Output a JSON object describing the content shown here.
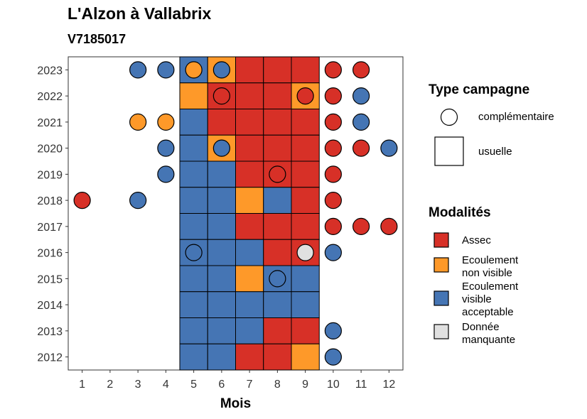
{
  "header": {
    "title": "L'Alzon à Vallabrix",
    "subtitle": "V7185017"
  },
  "colors": {
    "Assec": "#D73027",
    "Ecoulement non visible": "#FE9929",
    "Ecoulement visible acceptable": "#4575B4",
    "Donnée manquante": "#E0E0E0"
  },
  "legend_type": {
    "title": "Type campagne",
    "items": [
      {
        "label": "complémentaire",
        "shape": "circle"
      },
      {
        "label": "usuelle",
        "shape": "square"
      }
    ]
  },
  "legend_mod": {
    "title": "Modalités",
    "items": [
      {
        "key": "Assec",
        "lines": [
          "Assec"
        ]
      },
      {
        "key": "Ecoulement non visible",
        "lines": [
          "Ecoulement",
          "non visible"
        ]
      },
      {
        "key": "Ecoulement visible acceptable",
        "lines": [
          "Ecoulement",
          "visible",
          "acceptable"
        ]
      },
      {
        "key": "Donnée manquante",
        "lines": [
          "Donnée",
          "manquante"
        ]
      }
    ]
  },
  "chart_data": {
    "type": "heatmap",
    "xlabel": "Mois",
    "ylabel": "",
    "x_ticks": [
      1,
      2,
      3,
      4,
      5,
      6,
      7,
      8,
      9,
      10,
      11,
      12
    ],
    "y_ticks": [
      2012,
      2013,
      2014,
      2015,
      2016,
      2017,
      2018,
      2019,
      2020,
      2021,
      2022,
      2023
    ],
    "usuelle_tiles": [
      {
        "year": 2023,
        "month": 5,
        "value": "Ecoulement visible acceptable"
      },
      {
        "year": 2023,
        "month": 6,
        "value": "Ecoulement non visible"
      },
      {
        "year": 2023,
        "month": 7,
        "value": "Assec"
      },
      {
        "year": 2023,
        "month": 8,
        "value": "Assec"
      },
      {
        "year": 2023,
        "month": 9,
        "value": "Assec"
      },
      {
        "year": 2022,
        "month": 5,
        "value": "Ecoulement non visible"
      },
      {
        "year": 2022,
        "month": 6,
        "value": "Assec"
      },
      {
        "year": 2022,
        "month": 7,
        "value": "Assec"
      },
      {
        "year": 2022,
        "month": 8,
        "value": "Assec"
      },
      {
        "year": 2022,
        "month": 9,
        "value": "Ecoulement non visible"
      },
      {
        "year": 2021,
        "month": 5,
        "value": "Ecoulement visible acceptable"
      },
      {
        "year": 2021,
        "month": 6,
        "value": "Assec"
      },
      {
        "year": 2021,
        "month": 7,
        "value": "Assec"
      },
      {
        "year": 2021,
        "month": 8,
        "value": "Assec"
      },
      {
        "year": 2021,
        "month": 9,
        "value": "Assec"
      },
      {
        "year": 2020,
        "month": 5,
        "value": "Ecoulement visible acceptable"
      },
      {
        "year": 2020,
        "month": 6,
        "value": "Ecoulement non visible"
      },
      {
        "year": 2020,
        "month": 7,
        "value": "Assec"
      },
      {
        "year": 2020,
        "month": 8,
        "value": "Assec"
      },
      {
        "year": 2020,
        "month": 9,
        "value": "Assec"
      },
      {
        "year": 2019,
        "month": 5,
        "value": "Ecoulement visible acceptable"
      },
      {
        "year": 2019,
        "month": 6,
        "value": "Ecoulement visible acceptable"
      },
      {
        "year": 2019,
        "month": 7,
        "value": "Assec"
      },
      {
        "year": 2019,
        "month": 8,
        "value": "Assec"
      },
      {
        "year": 2019,
        "month": 9,
        "value": "Assec"
      },
      {
        "year": 2018,
        "month": 5,
        "value": "Ecoulement visible acceptable"
      },
      {
        "year": 2018,
        "month": 6,
        "value": "Ecoulement visible acceptable"
      },
      {
        "year": 2018,
        "month": 7,
        "value": "Ecoulement non visible"
      },
      {
        "year": 2018,
        "month": 8,
        "value": "Ecoulement visible acceptable"
      },
      {
        "year": 2018,
        "month": 9,
        "value": "Assec"
      },
      {
        "year": 2017,
        "month": 5,
        "value": "Ecoulement visible acceptable"
      },
      {
        "year": 2017,
        "month": 6,
        "value": "Ecoulement visible acceptable"
      },
      {
        "year": 2017,
        "month": 7,
        "value": "Assec"
      },
      {
        "year": 2017,
        "month": 8,
        "value": "Assec"
      },
      {
        "year": 2017,
        "month": 9,
        "value": "Assec"
      },
      {
        "year": 2016,
        "month": 5,
        "value": "Ecoulement visible acceptable"
      },
      {
        "year": 2016,
        "month": 6,
        "value": "Ecoulement visible acceptable"
      },
      {
        "year": 2016,
        "month": 7,
        "value": "Ecoulement visible acceptable"
      },
      {
        "year": 2016,
        "month": 8,
        "value": "Assec"
      },
      {
        "year": 2016,
        "month": 9,
        "value": "Assec"
      },
      {
        "year": 2015,
        "month": 5,
        "value": "Ecoulement visible acceptable"
      },
      {
        "year": 2015,
        "month": 6,
        "value": "Ecoulement visible acceptable"
      },
      {
        "year": 2015,
        "month": 7,
        "value": "Ecoulement non visible"
      },
      {
        "year": 2015,
        "month": 8,
        "value": "Ecoulement visible acceptable"
      },
      {
        "year": 2015,
        "month": 9,
        "value": "Ecoulement visible acceptable"
      },
      {
        "year": 2014,
        "month": 5,
        "value": "Ecoulement visible acceptable"
      },
      {
        "year": 2014,
        "month": 6,
        "value": "Ecoulement visible acceptable"
      },
      {
        "year": 2014,
        "month": 7,
        "value": "Ecoulement visible acceptable"
      },
      {
        "year": 2014,
        "month": 8,
        "value": "Ecoulement visible acceptable"
      },
      {
        "year": 2014,
        "month": 9,
        "value": "Ecoulement visible acceptable"
      },
      {
        "year": 2013,
        "month": 5,
        "value": "Ecoulement visible acceptable"
      },
      {
        "year": 2013,
        "month": 6,
        "value": "Ecoulement visible acceptable"
      },
      {
        "year": 2013,
        "month": 7,
        "value": "Ecoulement visible acceptable"
      },
      {
        "year": 2013,
        "month": 8,
        "value": "Assec"
      },
      {
        "year": 2013,
        "month": 9,
        "value": "Assec"
      },
      {
        "year": 2012,
        "month": 5,
        "value": "Ecoulement visible acceptable"
      },
      {
        "year": 2012,
        "month": 6,
        "value": "Ecoulement visible acceptable"
      },
      {
        "year": 2012,
        "month": 7,
        "value": "Assec"
      },
      {
        "year": 2012,
        "month": 8,
        "value": "Assec"
      },
      {
        "year": 2012,
        "month": 9,
        "value": "Ecoulement non visible"
      }
    ],
    "complementaire_points": [
      {
        "year": 2023,
        "month": 3,
        "value": "Ecoulement visible acceptable"
      },
      {
        "year": 2023,
        "month": 4,
        "value": "Ecoulement visible acceptable"
      },
      {
        "year": 2023,
        "month": 5,
        "value": "Ecoulement non visible"
      },
      {
        "year": 2023,
        "month": 6,
        "value": "Ecoulement visible acceptable"
      },
      {
        "year": 2023,
        "month": 10,
        "value": "Assec"
      },
      {
        "year": 2023,
        "month": 11,
        "value": "Assec"
      },
      {
        "year": 2022,
        "month": 6,
        "value": "Assec"
      },
      {
        "year": 2022,
        "month": 9,
        "value": "Assec"
      },
      {
        "year": 2022,
        "month": 10,
        "value": "Assec"
      },
      {
        "year": 2022,
        "month": 11,
        "value": "Ecoulement visible acceptable"
      },
      {
        "year": 2021,
        "month": 3,
        "value": "Ecoulement non visible"
      },
      {
        "year": 2021,
        "month": 4,
        "value": "Ecoulement non visible"
      },
      {
        "year": 2021,
        "month": 10,
        "value": "Assec"
      },
      {
        "year": 2021,
        "month": 11,
        "value": "Ecoulement visible acceptable"
      },
      {
        "year": 2020,
        "month": 4,
        "value": "Ecoulement visible acceptable"
      },
      {
        "year": 2020,
        "month": 6,
        "value": "Ecoulement visible acceptable"
      },
      {
        "year": 2020,
        "month": 10,
        "value": "Assec"
      },
      {
        "year": 2020,
        "month": 11,
        "value": "Assec"
      },
      {
        "year": 2020,
        "month": 12,
        "value": "Ecoulement visible acceptable"
      },
      {
        "year": 2019,
        "month": 4,
        "value": "Ecoulement visible acceptable"
      },
      {
        "year": 2019,
        "month": 8,
        "value": "Assec"
      },
      {
        "year": 2019,
        "month": 10,
        "value": "Assec"
      },
      {
        "year": 2018,
        "month": 1,
        "value": "Assec"
      },
      {
        "year": 2018,
        "month": 3,
        "value": "Ecoulement visible acceptable"
      },
      {
        "year": 2018,
        "month": 10,
        "value": "Assec"
      },
      {
        "year": 2017,
        "month": 10,
        "value": "Assec"
      },
      {
        "year": 2017,
        "month": 11,
        "value": "Assec"
      },
      {
        "year": 2017,
        "month": 12,
        "value": "Assec"
      },
      {
        "year": 2016,
        "month": 5,
        "value": "Ecoulement visible acceptable"
      },
      {
        "year": 2016,
        "month": 9,
        "value": "Donnée manquante"
      },
      {
        "year": 2016,
        "month": 10,
        "value": "Ecoulement visible acceptable"
      },
      {
        "year": 2015,
        "month": 8,
        "value": "Ecoulement visible acceptable"
      },
      {
        "year": 2013,
        "month": 10,
        "value": "Ecoulement visible acceptable"
      },
      {
        "year": 2012,
        "month": 10,
        "value": "Ecoulement visible acceptable"
      }
    ]
  }
}
